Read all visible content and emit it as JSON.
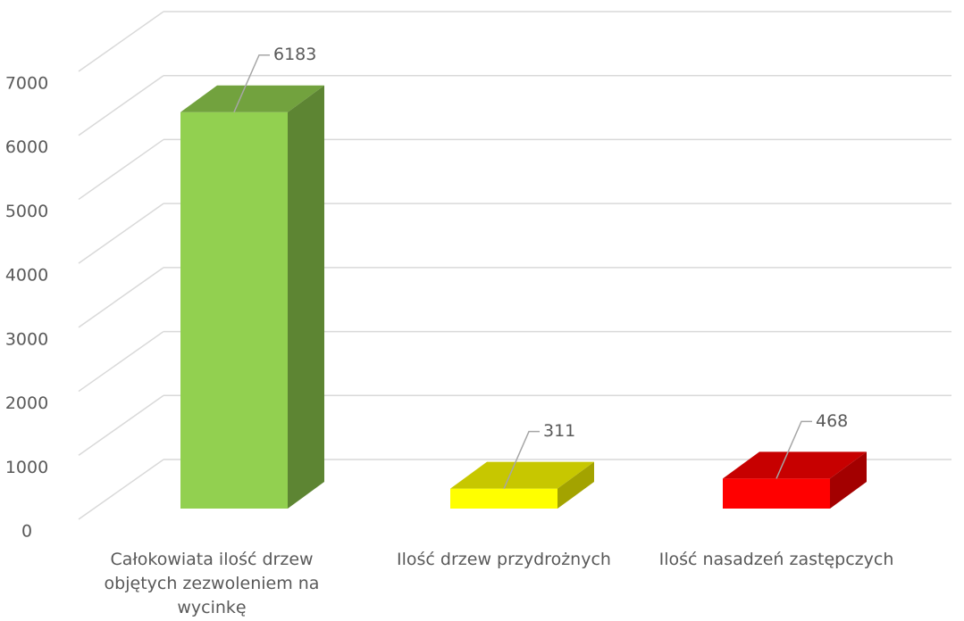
{
  "chart_data": {
    "type": "bar3d",
    "categories": [
      "Całokowiata ilość drzew objętych zezwoleniem na wycinkę",
      "Ilość drzew przydrożnych",
      "Ilość nasadzeń zastępczych"
    ],
    "values": [
      6183,
      311,
      468
    ],
    "colors": [
      "#92d050",
      "#ffff00",
      "#ff0000"
    ],
    "ylim": [
      0,
      7000
    ],
    "yticks": [
      0,
      1000,
      2000,
      3000,
      4000,
      5000,
      6000,
      7000
    ],
    "grid": true
  }
}
